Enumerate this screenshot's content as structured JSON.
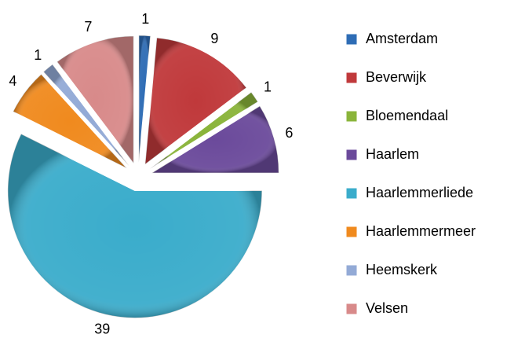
{
  "chart_data": {
    "type": "pie",
    "categories": [
      "Amsterdam",
      "Beverwijk",
      "Bloemendaal",
      "Haarlem",
      "Haarlemmerliede",
      "Haarlemmermeer",
      "Heemskerk",
      "Velsen"
    ],
    "values": [
      1,
      9,
      1,
      6,
      39,
      4,
      1,
      7
    ],
    "colors": [
      "#2e6cb5",
      "#c0393b",
      "#8ab43a",
      "#6b4a9b",
      "#3aaccb",
      "#f08a1e",
      "#93aad6",
      "#d88a8a"
    ],
    "legend": "right"
  }
}
